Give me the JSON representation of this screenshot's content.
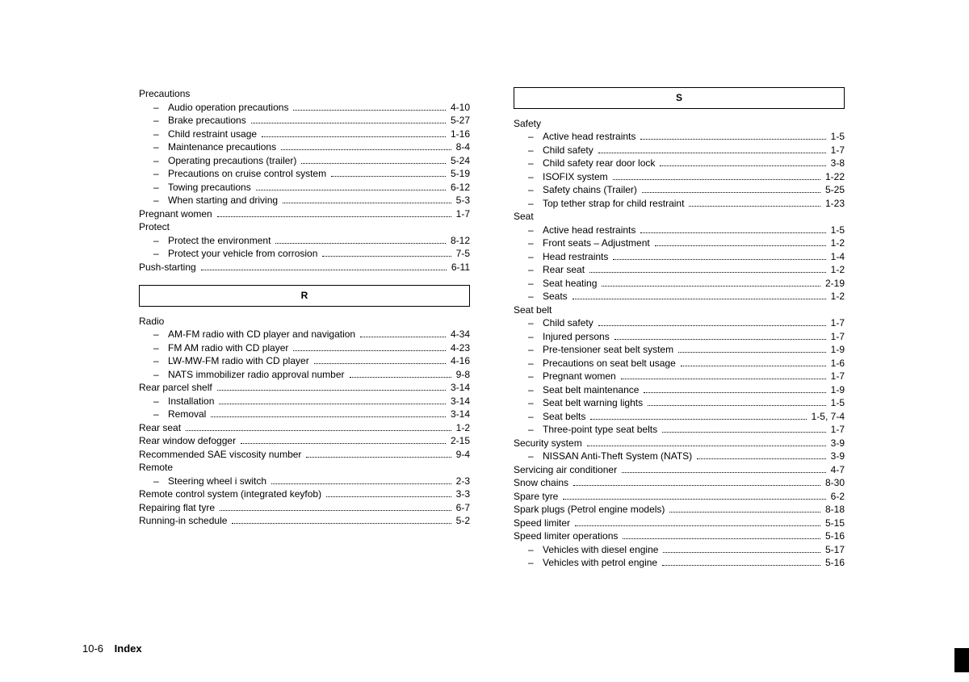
{
  "footer": {
    "page": "10-6",
    "section": "Index"
  },
  "letters": {
    "R": "R",
    "S": "S"
  },
  "left": [
    {
      "type": "head",
      "label": "Precautions"
    },
    {
      "type": "sub",
      "label": "Audio operation precautions",
      "page": "4-10"
    },
    {
      "type": "sub",
      "label": "Brake precautions",
      "page": "5-27"
    },
    {
      "type": "sub",
      "label": "Child restraint usage",
      "page": "1-16"
    },
    {
      "type": "sub",
      "label": "Maintenance precautions",
      "page": "8-4"
    },
    {
      "type": "sub",
      "label": "Operating precautions (trailer)",
      "page": "5-24"
    },
    {
      "type": "sub",
      "label": "Precautions on cruise control system",
      "page": "5-19"
    },
    {
      "type": "sub",
      "label": "Towing precautions",
      "page": "6-12"
    },
    {
      "type": "sub",
      "label": "When starting and driving",
      "page": "5-3"
    },
    {
      "type": "top",
      "label": "Pregnant women",
      "page": "1-7"
    },
    {
      "type": "head",
      "label": "Protect"
    },
    {
      "type": "sub",
      "label": "Protect the environment",
      "page": "8-12"
    },
    {
      "type": "sub",
      "label": "Protect your vehicle from corrosion",
      "page": "7-5"
    },
    {
      "type": "top",
      "label": "Push-starting",
      "page": "6-11"
    },
    {
      "type": "letter",
      "key": "R"
    },
    {
      "type": "head",
      "label": "Radio"
    },
    {
      "type": "sub",
      "label": "AM-FM radio with CD player and navigation",
      "page": "4-34"
    },
    {
      "type": "sub",
      "label": "FM AM radio with CD player",
      "page": "4-23"
    },
    {
      "type": "sub",
      "label": "LW-MW-FM radio with CD player",
      "page": "4-16"
    },
    {
      "type": "sub",
      "label": "NATS immobilizer radio approval number",
      "page": "9-8"
    },
    {
      "type": "top",
      "label": "Rear parcel shelf",
      "page": "3-14"
    },
    {
      "type": "sub",
      "label": "Installation",
      "page": "3-14"
    },
    {
      "type": "sub",
      "label": "Removal",
      "page": "3-14"
    },
    {
      "type": "top",
      "label": "Rear seat",
      "page": "1-2"
    },
    {
      "type": "top",
      "label": "Rear window defogger",
      "page": "2-15"
    },
    {
      "type": "top",
      "label": "Recommended SAE viscosity number",
      "page": "9-4"
    },
    {
      "type": "head",
      "label": "Remote"
    },
    {
      "type": "sub",
      "label": "Steering wheel i switch",
      "page": "2-3"
    },
    {
      "type": "top",
      "label": "Remote control system (integrated keyfob)",
      "page": "3-3"
    },
    {
      "type": "top",
      "label": "Repairing flat tyre",
      "page": "6-7"
    },
    {
      "type": "top",
      "label": "Running-in schedule",
      "page": "5-2"
    }
  ],
  "right": [
    {
      "type": "letter",
      "key": "S"
    },
    {
      "type": "head",
      "label": "Safety"
    },
    {
      "type": "sub",
      "label": "Active head restraints",
      "page": "1-5"
    },
    {
      "type": "sub",
      "label": "Child safety",
      "page": "1-7"
    },
    {
      "type": "sub",
      "label": "Child safety rear door lock",
      "page": "3-8"
    },
    {
      "type": "sub",
      "label": "ISOFIX system",
      "page": "1-22"
    },
    {
      "type": "sub",
      "label": "Safety chains (Trailer)",
      "page": "5-25"
    },
    {
      "type": "sub",
      "label": "Top tether strap for child restraint",
      "page": "1-23"
    },
    {
      "type": "head",
      "label": "Seat"
    },
    {
      "type": "sub",
      "label": "Active head restraints",
      "page": "1-5"
    },
    {
      "type": "sub",
      "label": "Front seats – Adjustment",
      "page": "1-2"
    },
    {
      "type": "sub",
      "label": "Head restraints",
      "page": "1-4"
    },
    {
      "type": "sub",
      "label": "Rear seat",
      "page": "1-2"
    },
    {
      "type": "sub",
      "label": "Seat heating",
      "page": "2-19"
    },
    {
      "type": "sub",
      "label": "Seats",
      "page": "1-2"
    },
    {
      "type": "head",
      "label": "Seat belt"
    },
    {
      "type": "sub",
      "label": "Child safety",
      "page": "1-7"
    },
    {
      "type": "sub",
      "label": "Injured persons",
      "page": "1-7"
    },
    {
      "type": "sub",
      "label": "Pre-tensioner seat belt system",
      "page": "1-9"
    },
    {
      "type": "sub",
      "label": "Precautions on seat belt usage",
      "page": "1-6"
    },
    {
      "type": "sub",
      "label": "Pregnant women",
      "page": "1-7"
    },
    {
      "type": "sub",
      "label": "Seat belt maintenance",
      "page": "1-9"
    },
    {
      "type": "sub",
      "label": "Seat belt warning lights",
      "page": "1-5"
    },
    {
      "type": "sub",
      "label": "Seat belts",
      "page": "1-5, 7-4"
    },
    {
      "type": "sub",
      "label": "Three-point type seat belts",
      "page": "1-7"
    },
    {
      "type": "top",
      "label": "Security system",
      "page": "3-9"
    },
    {
      "type": "sub",
      "label": "NISSAN Anti-Theft System (NATS)",
      "page": "3-9"
    },
    {
      "type": "top",
      "label": "Servicing air conditioner",
      "page": "4-7"
    },
    {
      "type": "top",
      "label": "Snow chains",
      "page": "8-30"
    },
    {
      "type": "top",
      "label": "Spare tyre",
      "page": "6-2"
    },
    {
      "type": "top",
      "label": "Spark plugs (Petrol engine models)",
      "page": "8-18"
    },
    {
      "type": "top",
      "label": "Speed limiter",
      "page": "5-15"
    },
    {
      "type": "top",
      "label": "Speed limiter operations",
      "page": "5-16"
    },
    {
      "type": "sub",
      "label": "Vehicles with diesel engine",
      "page": "5-17"
    },
    {
      "type": "sub",
      "label": "Vehicles with petrol engine",
      "page": "5-16"
    }
  ]
}
